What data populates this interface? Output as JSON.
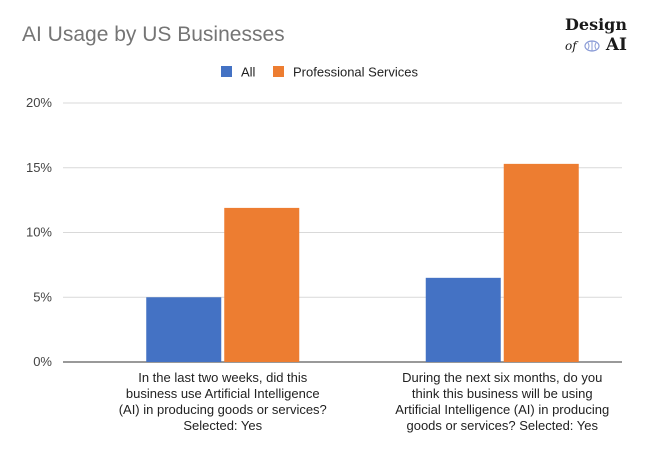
{
  "title": "AI Usage by US Businesses",
  "logo": {
    "line1": "Design",
    "of": "of",
    "ai": "AI"
  },
  "chart_data": {
    "type": "bar",
    "categories": [
      [
        "In the last two weeks, did this",
        "business use Artificial Intelligence",
        "(AI) in producing goods or services?",
        "Selected: Yes"
      ],
      [
        "During the next six months, do you",
        "think this business will be using",
        "Artificial Intelligence (AI) in producing",
        "goods or services? Selected: Yes"
      ]
    ],
    "series": [
      {
        "name": "All",
        "color": "#4472c4",
        "values": [
          5.0,
          6.5
        ]
      },
      {
        "name": "Professional Services",
        "color": "#ed7d31",
        "values": [
          11.9,
          15.3
        ]
      }
    ],
    "ylim": [
      0,
      20
    ],
    "yticks": [
      "0%",
      "5%",
      "10%",
      "15%",
      "20%"
    ],
    "ytick_values": [
      0,
      5,
      10,
      15,
      20
    ],
    "grid": true,
    "legend_position": "top-center"
  }
}
